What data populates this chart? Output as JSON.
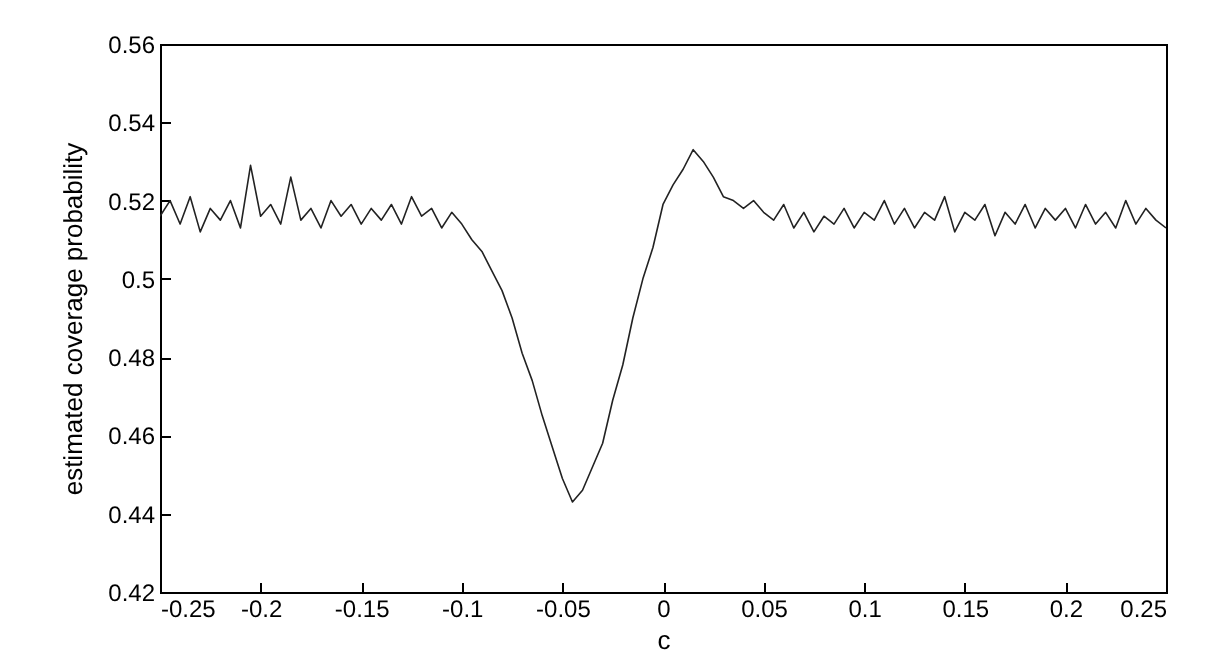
{
  "chart_data": {
    "type": "line",
    "xlabel": "c",
    "ylabel": "estimated coverage probability",
    "xlim": [
      -0.25,
      0.25
    ],
    "ylim": [
      0.42,
      0.56
    ],
    "xticks": [
      -0.25,
      -0.2,
      -0.15,
      -0.1,
      -0.05,
      0,
      0.05,
      0.1,
      0.15,
      0.2,
      0.25
    ],
    "yticks": [
      0.42,
      0.44,
      0.46,
      0.48,
      0.5,
      0.52,
      0.54,
      0.56
    ],
    "grid": false,
    "line_style": "solid",
    "x": [
      -0.25,
      -0.245,
      -0.24,
      -0.235,
      -0.23,
      -0.225,
      -0.22,
      -0.215,
      -0.21,
      -0.205,
      -0.2,
      -0.195,
      -0.19,
      -0.185,
      -0.18,
      -0.175,
      -0.17,
      -0.165,
      -0.16,
      -0.155,
      -0.15,
      -0.145,
      -0.14,
      -0.135,
      -0.13,
      -0.125,
      -0.12,
      -0.115,
      -0.11,
      -0.105,
      -0.1,
      -0.095,
      -0.09,
      -0.085,
      -0.08,
      -0.075,
      -0.07,
      -0.065,
      -0.06,
      -0.055,
      -0.05,
      -0.045,
      -0.04,
      -0.035,
      -0.03,
      -0.025,
      -0.02,
      -0.015,
      -0.01,
      -0.005,
      0,
      0.005,
      0.01,
      0.015,
      0.02,
      0.025,
      0.03,
      0.035,
      0.04,
      0.045,
      0.05,
      0.055,
      0.06,
      0.065,
      0.07,
      0.075,
      0.08,
      0.085,
      0.09,
      0.095,
      0.1,
      0.105,
      0.11,
      0.115,
      0.12,
      0.125,
      0.13,
      0.135,
      0.14,
      0.145,
      0.15,
      0.155,
      0.16,
      0.165,
      0.17,
      0.175,
      0.18,
      0.185,
      0.19,
      0.195,
      0.2,
      0.205,
      0.21,
      0.215,
      0.22,
      0.225,
      0.23,
      0.235,
      0.24,
      0.245,
      0.25
    ],
    "series": [
      {
        "color": "#222222",
        "values": [
          0.516,
          0.52,
          0.514,
          0.521,
          0.512,
          0.518,
          0.515,
          0.52,
          0.513,
          0.529,
          0.516,
          0.519,
          0.514,
          0.526,
          0.515,
          0.518,
          0.513,
          0.52,
          0.516,
          0.519,
          0.514,
          0.518,
          0.515,
          0.519,
          0.514,
          0.521,
          0.516,
          0.518,
          0.513,
          0.517,
          0.514,
          0.51,
          0.507,
          0.502,
          0.497,
          0.49,
          0.481,
          0.474,
          0.465,
          0.457,
          0.449,
          0.443,
          0.446,
          0.452,
          0.458,
          0.469,
          0.478,
          0.49,
          0.5,
          0.508,
          0.519,
          0.524,
          0.528,
          0.533,
          0.53,
          0.526,
          0.521,
          0.52,
          0.518,
          0.52,
          0.517,
          0.515,
          0.519,
          0.513,
          0.517,
          0.512,
          0.516,
          0.514,
          0.518,
          0.513,
          0.517,
          0.515,
          0.52,
          0.514,
          0.518,
          0.513,
          0.517,
          0.515,
          0.521,
          0.512,
          0.517,
          0.515,
          0.519,
          0.511,
          0.517,
          0.514,
          0.519,
          0.513,
          0.518,
          0.515,
          0.518,
          0.513,
          0.519,
          0.514,
          0.517,
          0.513,
          0.52,
          0.514,
          0.518,
          0.515,
          0.513
        ]
      }
    ]
  }
}
